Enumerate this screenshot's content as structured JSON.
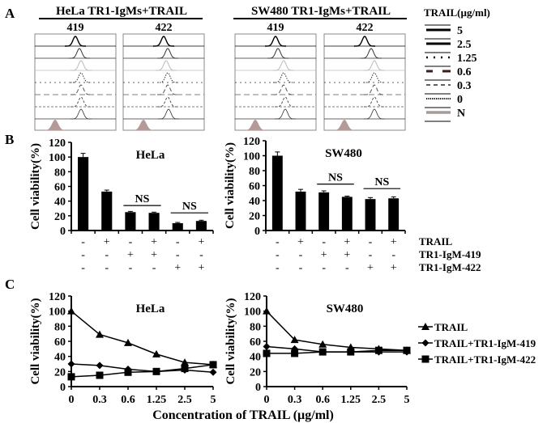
{
  "panels": {
    "A": {
      "letter": "A",
      "groups": [
        {
          "title": "HeLa TR1-IgMs+TRAIL",
          "samples": [
            "419",
            "422"
          ],
          "peak_shift": [
            [
              0.0,
              0.05,
              0.07,
              0.07,
              0.07,
              0.07,
              0.07
            ],
            [
              0.0,
              0.05,
              0.03,
              0.05,
              0.05,
              0.05,
              0.06
            ]
          ]
        },
        {
          "title": "SW480 TR1-IgMs+TRAIL",
          "samples": [
            "419",
            "422"
          ],
          "peak_shift": [
            [
              0.0,
              0.03,
              0.1,
              0.1,
              0.1,
              0.12,
              0.12
            ],
            [
              0.0,
              0.08,
              0.12,
              0.12,
              0.12,
              0.12,
              0.12
            ]
          ]
        }
      ],
      "legend_title": "TRAIL(µg/ml)",
      "legend": [
        {
          "label": "5",
          "style": "thick"
        },
        {
          "label": "2.5",
          "style": "thick"
        },
        {
          "label": "1.25",
          "style": "dot-sparse"
        },
        {
          "label": "0.6",
          "style": "dash-dark"
        },
        {
          "label": "0.3",
          "style": "dash"
        },
        {
          "label": "0",
          "style": "dotted"
        },
        {
          "label": "N",
          "style": "grey-fill"
        }
      ],
      "negative_color": "#b49a98"
    },
    "B": {
      "letter": "B"
    },
    "C": {
      "letter": "C"
    }
  },
  "chart_data": [
    {
      "type": "bar",
      "title": "HeLa",
      "ylabel": "Cell viability(%)",
      "ylim": [
        0,
        120
      ],
      "yticks": [
        "0",
        "20",
        "40",
        "60",
        "80",
        "100",
        "120"
      ],
      "categories": [
        "1",
        "2",
        "3",
        "4",
        "5",
        "6"
      ],
      "values": [
        100,
        53,
        25,
        24,
        10,
        13
      ],
      "errors": [
        5,
        2,
        1,
        1,
        1,
        1
      ],
      "treatment_rows": [
        {
          "label": "TRAIL",
          "signs": [
            "-",
            "+",
            "-",
            "+",
            "-",
            "+"
          ]
        },
        {
          "label": "TR1-IgM-419",
          "signs": [
            "-",
            "-",
            "+",
            "+",
            "-",
            "-"
          ]
        },
        {
          "label": "TR1-IgM-422",
          "signs": [
            "-",
            "-",
            "-",
            "-",
            "+",
            "+"
          ]
        }
      ],
      "annotations": [
        {
          "text": "NS",
          "from": 2,
          "to": 3,
          "at": 34
        },
        {
          "text": "NS",
          "from": 4,
          "to": 5,
          "at": 24
        }
      ]
    },
    {
      "type": "bar",
      "title": "SW480",
      "ylabel": "Cell viability(%)",
      "ylim": [
        0,
        120
      ],
      "yticks": [
        "0",
        "20",
        "40",
        "60",
        "80",
        "100",
        "120"
      ],
      "categories": [
        "1",
        "2",
        "3",
        "4",
        "5",
        "6"
      ],
      "values": [
        100,
        52,
        51,
        45,
        42,
        43
      ],
      "errors": [
        5,
        3,
        2,
        1,
        2,
        2
      ],
      "treatment_rows": [
        {
          "label": "TRAIL",
          "signs": [
            "-",
            "+",
            "-",
            "+",
            "-",
            "+"
          ]
        },
        {
          "label": "TR1-IgM-419",
          "signs": [
            "-",
            "-",
            "+",
            "+",
            "-",
            "-"
          ]
        },
        {
          "label": "TR1-IgM-422",
          "signs": [
            "-",
            "-",
            "-",
            "-",
            "+",
            "+"
          ]
        }
      ],
      "annotations": [
        {
          "text": "NS",
          "from": 2,
          "to": 3,
          "at": 62
        },
        {
          "text": "NS",
          "from": 4,
          "to": 5,
          "at": 56
        }
      ]
    },
    {
      "type": "line",
      "title": "HeLa",
      "ylabel": "Cell viability(%)",
      "ylim": [
        0,
        120
      ],
      "yticks": [
        "0",
        "20",
        "40",
        "60",
        "80",
        "100",
        "120"
      ],
      "x": [
        "0",
        "0.3",
        "0.6",
        "1.25",
        "2.5",
        "5"
      ],
      "series": [
        {
          "name": "TRAIL",
          "marker": "triangle",
          "values": [
            100,
            69,
            58,
            43,
            32,
            29
          ]
        },
        {
          "name": "TRAIL+TR1-IgM-419",
          "marker": "diamond",
          "values": [
            30,
            28,
            23,
            20,
            22,
            19
          ]
        },
        {
          "name": "TRAIL+TR1-IgM-422",
          "marker": "square",
          "values": [
            13,
            15,
            19,
            20,
            24,
            29
          ]
        }
      ]
    },
    {
      "type": "line",
      "title": "SW480",
      "ylabel": "Cell viability(%)",
      "ylim": [
        0,
        120
      ],
      "yticks": [
        "0",
        "20",
        "40",
        "60",
        "80",
        "100",
        "120"
      ],
      "x": [
        "0",
        "0.3",
        "0.6",
        "1.25",
        "2.5",
        "5"
      ],
      "series": [
        {
          "name": "TRAIL",
          "marker": "triangle",
          "values": [
            100,
            62,
            56,
            52,
            50,
            48
          ]
        },
        {
          "name": "TRAIL+TR1-IgM-419",
          "marker": "diamond",
          "values": [
            53,
            50,
            46,
            46,
            46,
            46
          ]
        },
        {
          "name": "TRAIL+TR1-IgM-422",
          "marker": "square",
          "values": [
            44,
            44,
            46,
            46,
            48,
            48
          ]
        }
      ]
    }
  ],
  "line_legend": [
    "TRAIL",
    "TRAIL+TR1-IgM-419",
    "TRAIL+TR1-IgM-422"
  ],
  "xlabel_C": "Concentration of TRAIL (µg/ml)"
}
